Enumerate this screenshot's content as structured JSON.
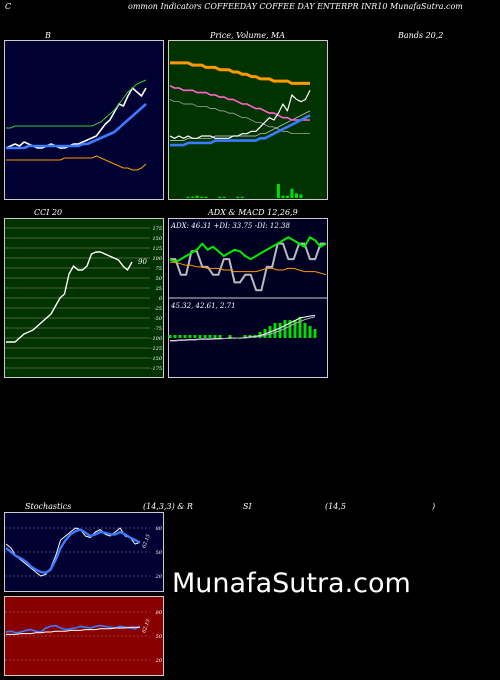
{
  "header": {
    "title_left": "C",
    "title_main": "ommon Indicators COFFEEDAY COFFEE DAY ENTERPR INR10 MunafaSutra.com"
  },
  "labels": {
    "bands_b": "B",
    "price_ma": "Price, Volume, MA",
    "bands_value": "Bands 20,2",
    "cci": "CCI 20",
    "adx_macd": "ADX & MACD 12,26,9",
    "stoch": "Stochastics",
    "stoch_params": "(14,3,3) & R",
    "rsi_si": "SI",
    "rsi_params": "(14,5",
    "rsi_close": ")"
  },
  "watermark": "MunafaSutra.com",
  "colors": {
    "bollinger_bg": "#000033",
    "price_bg": "#003300",
    "cci_bg": "#003300",
    "adx_bg": "#000022",
    "stoch_bg": "#000033",
    "rsi_bg": "#880000",
    "blue_line": "#3a7bff",
    "green_line": "#33cc33",
    "orange_line": "#ff9900",
    "white_line": "#ffffff"
  },
  "chart_data": [
    {
      "type": "line",
      "name": "bollinger",
      "series": [
        {
          "name": "price",
          "values": [
            36,
            37,
            38,
            37,
            39,
            38,
            37,
            36,
            36,
            37,
            38,
            37,
            36,
            36,
            37,
            38,
            38,
            39,
            40,
            41,
            42,
            45,
            48,
            50,
            54,
            58,
            57,
            62,
            66,
            64,
            62,
            66
          ]
        },
        {
          "name": "upper",
          "values": [
            46,
            46,
            47,
            47,
            47,
            47,
            47,
            47,
            47,
            47,
            47,
            47,
            47,
            47,
            47,
            47,
            47,
            47,
            47,
            47,
            48,
            49,
            51,
            53,
            55,
            58,
            61,
            64,
            66,
            68,
            69,
            70
          ]
        },
        {
          "name": "middle",
          "values": [
            36,
            36,
            36,
            36,
            36,
            37,
            37,
            37,
            37,
            37,
            37,
            37,
            37,
            37,
            37,
            37,
            37,
            38,
            38,
            39,
            40,
            41,
            42,
            43,
            44,
            46,
            48,
            50,
            52,
            54,
            56,
            58
          ]
        },
        {
          "name": "lower",
          "values": [
            30,
            30,
            30,
            30,
            30,
            30,
            30,
            30,
            30,
            30,
            30,
            30,
            30,
            31,
            31,
            31,
            31,
            31,
            31,
            31,
            32,
            31,
            30,
            29,
            28,
            27,
            26,
            26,
            25,
            25,
            26,
            28
          ]
        }
      ]
    },
    {
      "type": "line",
      "name": "price_volume_ma",
      "series": [
        {
          "name": "ma_orange",
          "values": [
            80,
            80,
            80,
            80,
            80,
            79,
            79,
            79,
            78,
            78,
            78,
            77,
            77,
            77,
            76,
            76,
            75,
            75,
            74,
            74,
            73,
            73,
            73,
            72,
            72,
            72,
            72,
            71,
            71,
            71,
            71,
            71
          ]
        },
        {
          "name": "ma_pink",
          "values": [
            70,
            69,
            69,
            68,
            68,
            68,
            67,
            67,
            67,
            66,
            66,
            65,
            65,
            64,
            64,
            63,
            62,
            62,
            61,
            60,
            60,
            59,
            58,
            58,
            57,
            56,
            56,
            55,
            55,
            55,
            55,
            55
          ]
        },
        {
          "name": "ma_blue",
          "values": [
            44,
            44,
            44,
            44,
            45,
            45,
            45,
            45,
            45,
            45,
            46,
            46,
            46,
            46,
            46,
            46,
            46,
            46,
            46,
            46,
            47,
            47,
            48,
            49,
            50,
            51,
            52,
            53,
            54,
            55,
            56,
            57
          ]
        },
        {
          "name": "price",
          "values": [
            48,
            47,
            48,
            47,
            48,
            47,
            47,
            48,
            48,
            48,
            47,
            47,
            47,
            47,
            48,
            48,
            49,
            49,
            50,
            50,
            52,
            54,
            56,
            55,
            58,
            62,
            59,
            66,
            64,
            63,
            64,
            68
          ]
        }
      ],
      "volume": [
        0,
        0,
        0,
        0,
        1,
        1,
        2,
        1,
        1,
        0,
        0,
        1,
        1,
        0,
        0,
        1,
        1,
        0,
        0,
        0,
        0,
        0,
        0,
        0,
        12,
        2,
        2,
        8,
        4,
        3,
        0,
        0
      ]
    },
    {
      "type": "line",
      "name": "cci",
      "y_ticks": [
        175,
        150,
        125,
        100,
        75,
        50,
        25,
        0,
        -25,
        -50,
        -75,
        -100,
        -125,
        -150,
        -175
      ],
      "last_label": "90",
      "values": [
        -110,
        -110,
        -110,
        -100,
        -90,
        -85,
        -80,
        -70,
        -60,
        -50,
        -40,
        -20,
        0,
        10,
        60,
        80,
        70,
        70,
        80,
        110,
        115,
        115,
        110,
        105,
        100,
        95,
        80,
        70,
        90
      ]
    },
    {
      "type": "line",
      "name": "adx_macd",
      "adx_label": "ADX: 46.31 +DI: 33.75 -DI: 12.38",
      "macd_label": "45.32, 42.61, 2.71",
      "series": [
        {
          "name": "adx",
          "values": [
            50,
            50,
            40,
            40,
            55,
            55,
            45,
            45,
            40,
            40,
            50,
            50,
            35,
            35,
            40,
            40,
            30,
            30,
            45,
            45,
            60,
            60,
            50,
            50,
            60,
            60,
            50,
            50,
            60,
            60
          ]
        },
        {
          "name": "plus_di",
          "values": [
            50,
            48,
            50,
            52,
            54,
            56,
            60,
            56,
            58,
            55,
            52,
            54,
            56,
            55,
            52,
            50,
            52,
            54,
            56,
            58,
            60,
            62,
            64,
            62,
            60,
            58,
            64,
            62,
            58,
            60
          ]
        },
        {
          "name": "minus_di",
          "values": [
            48,
            48,
            47,
            46,
            46,
            45,
            45,
            44,
            44,
            44,
            43,
            43,
            42,
            42,
            42,
            42,
            42,
            43,
            44,
            44,
            43,
            43,
            44,
            44,
            43,
            42,
            42,
            42,
            41,
            40
          ]
        },
        {
          "name": "macd",
          "values": [
            -5,
            -5,
            -4,
            -4,
            -3,
            -3,
            -2,
            -2,
            -2,
            -1,
            -1,
            -1,
            0,
            0,
            0,
            1,
            2,
            3,
            5,
            8,
            12,
            16,
            20,
            25,
            30,
            35,
            40,
            42,
            44,
            45
          ]
        },
        {
          "name": "signal",
          "values": [
            -6,
            -6,
            -5,
            -5,
            -4,
            -4,
            -3,
            -3,
            -3,
            -2,
            -2,
            -1,
            -1,
            0,
            0,
            0,
            1,
            2,
            3,
            5,
            8,
            11,
            15,
            19,
            24,
            29,
            33,
            37,
            40,
            42
          ]
        }
      ]
    },
    {
      "type": "line",
      "name": "stochastics",
      "y_ticks": [
        80,
        50,
        20
      ],
      "last_label": "62.15",
      "series": [
        {
          "name": "k",
          "values": [
            60,
            55,
            45,
            40,
            35,
            30,
            25,
            20,
            22,
            30,
            45,
            65,
            70,
            75,
            80,
            78,
            70,
            68,
            75,
            78,
            72,
            70,
            75,
            80,
            70,
            68,
            60,
            62
          ]
        },
        {
          "name": "d",
          "values": [
            55,
            50,
            45,
            42,
            38,
            32,
            28,
            25,
            24,
            28,
            40,
            55,
            65,
            72,
            76,
            78,
            74,
            70,
            72,
            75,
            74,
            72,
            72,
            75,
            72,
            68,
            65,
            62
          ]
        }
      ]
    },
    {
      "type": "line",
      "name": "rsi",
      "y_ticks": [
        80,
        50,
        20
      ],
      "last_label": "62.15",
      "series": [
        {
          "name": "rsi_blue",
          "values": [
            55,
            56,
            54,
            55,
            57,
            58,
            56,
            55,
            60,
            62,
            63,
            60,
            58,
            59,
            60,
            62,
            61,
            60,
            62,
            63,
            62,
            61,
            60,
            62,
            61,
            60,
            59,
            62
          ]
        },
        {
          "name": "rsi_white",
          "values": [
            52,
            52,
            52,
            53,
            53,
            53,
            54,
            54,
            55,
            55,
            56,
            56,
            56,
            57,
            57,
            57,
            58,
            58,
            58,
            59,
            59,
            59,
            60,
            60,
            60,
            61,
            61,
            61
          ]
        }
      ]
    }
  ]
}
